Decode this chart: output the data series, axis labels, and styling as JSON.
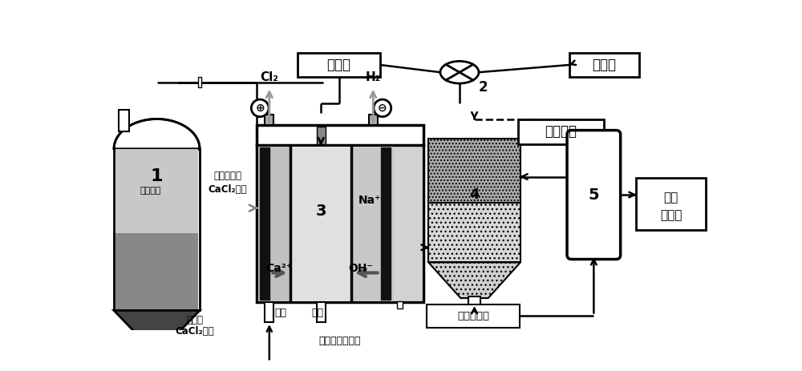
{
  "bg_color": "#ffffff",
  "label_1": "1",
  "label_2": "2",
  "label_3": "3",
  "label_4": "4",
  "label_5": "5",
  "text_ganaminosuan": "甘氨酸",
  "text_cujinjia": "促进剂",
  "text_chunxituoji": "醇洗脱剂",
  "text_suanxingdicl2_1": "酸性低浓度",
  "text_suanxingdicl2_2": "CaCl₂溶液",
  "text_gaonongducl2_1": "高浓度",
  "text_gaonongducl2_2": "CaCl₂溶液",
  "text_yangmo": "阳膜",
  "text_yinmo": "阴膜",
  "text_cl2": "Cl₂",
  "text_h2": "H₂",
  "text_na": "Na⁺",
  "text_oh": "OH⁻",
  "text_ca": "Ca²⁺",
  "text_ganaminosuancaluo": "甘氨酸馒络合液",
  "text_gansuancachendian": "甘酸馒沉淠",
  "text_gaochungansuanca_1": "高纯",
  "text_gaochungansuanca_2": "甘酸馒",
  "text_chelabel": "锂质原料"
}
